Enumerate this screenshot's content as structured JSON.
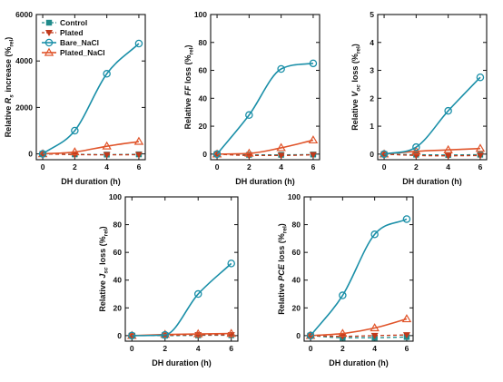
{
  "colors": {
    "control": "#1f8a8a",
    "plated": "#c0391b",
    "bare_nacl": "#1a8fa8",
    "plated_nacl": "#e0542a",
    "axis": "#111111"
  },
  "chart_data": [
    {
      "id": "rs",
      "type": "line",
      "xlabel": "DH duration (h)",
      "ylabel": {
        "pre": "Relative ",
        "main": "R",
        "mainSub": "s",
        "post": " increase (%",
        "sub": "rel",
        "close": ")"
      },
      "xlim": [
        -0.4,
        6.4
      ],
      "ylim": [
        -250,
        6000
      ],
      "xticks": [
        0,
        2,
        4,
        6
      ],
      "yticks": [
        0,
        2000,
        4000,
        6000
      ],
      "x": [
        0,
        2,
        4,
        6
      ],
      "series": [
        {
          "name": "Control",
          "values": [
            0,
            -20,
            -30,
            -20
          ]
        },
        {
          "name": "Plated",
          "values": [
            0,
            -30,
            -40,
            -35
          ]
        },
        {
          "name": "Bare_NaCl",
          "values": [
            0,
            1000,
            3450,
            4750
          ]
        },
        {
          "name": "Plated_NaCl",
          "values": [
            0,
            80,
            330,
            530
          ]
        }
      ],
      "legend": "top-left"
    },
    {
      "id": "ff",
      "type": "line",
      "xlabel": "DH duration (h)",
      "ylabel": {
        "pre": "Relative ",
        "main": "FF",
        "post": " loss (%",
        "sub": "rel",
        "close": ")"
      },
      "xlim": [
        -0.4,
        6.4
      ],
      "ylim": [
        -4,
        100
      ],
      "xticks": [
        0,
        2,
        4,
        6
      ],
      "yticks": [
        0,
        20,
        40,
        60,
        80,
        100
      ],
      "x": [
        0,
        2,
        4,
        6
      ],
      "series": [
        {
          "name": "Control",
          "values": [
            0,
            -0.5,
            -0.5,
            -0.3
          ]
        },
        {
          "name": "Plated",
          "values": [
            0,
            -1,
            -1,
            -0.5
          ]
        },
        {
          "name": "Bare_NaCl",
          "values": [
            0,
            28,
            61,
            65
          ]
        },
        {
          "name": "Plated_NaCl",
          "values": [
            0,
            0.5,
            4.5,
            10
          ]
        }
      ]
    },
    {
      "id": "voc",
      "type": "line",
      "xlabel": "DH duration (h)",
      "ylabel": {
        "pre": "Relative ",
        "main": "V",
        "mainSub": "oc",
        "post": " loss (%",
        "sub": "rel",
        "close": ")"
      },
      "xlim": [
        -0.4,
        6.4
      ],
      "ylim": [
        -0.2,
        5
      ],
      "xticks": [
        0,
        2,
        4,
        6
      ],
      "yticks": [
        0,
        1,
        2,
        3,
        4,
        5
      ],
      "x": [
        0,
        2,
        4,
        6
      ],
      "series": [
        {
          "name": "Control",
          "values": [
            0,
            -0.02,
            -0.03,
            -0.02
          ]
        },
        {
          "name": "Plated",
          "values": [
            0,
            -0.05,
            -0.06,
            -0.05
          ]
        },
        {
          "name": "Bare_NaCl",
          "values": [
            0,
            0.25,
            1.55,
            2.75
          ]
        },
        {
          "name": "Plated_NaCl",
          "values": [
            0,
            0.1,
            0.15,
            0.2
          ]
        }
      ]
    },
    {
      "id": "jsc",
      "type": "line",
      "xlabel": "DH duration (h)",
      "ylabel": {
        "pre": "Relative ",
        "main": "J",
        "mainSub": "sc",
        "post": " loss (%",
        "sub": "rel",
        "close": ")"
      },
      "xlim": [
        -0.4,
        6.4
      ],
      "ylim": [
        -4,
        100
      ],
      "xticks": [
        0,
        2,
        4,
        6
      ],
      "yticks": [
        0,
        20,
        40,
        60,
        80,
        100
      ],
      "x": [
        0,
        2,
        4,
        6
      ],
      "series": [
        {
          "name": "Control",
          "values": [
            0,
            0,
            0.2,
            0.3
          ]
        },
        {
          "name": "Plated",
          "values": [
            0,
            0.3,
            0.5,
            0.5
          ]
        },
        {
          "name": "Bare_NaCl",
          "values": [
            0,
            0.5,
            30,
            52
          ]
        },
        {
          "name": "Plated_NaCl",
          "values": [
            0,
            0.8,
            1.2,
            1.5
          ]
        }
      ]
    },
    {
      "id": "pce",
      "type": "line",
      "xlabel": "DH duration (h)",
      "ylabel": {
        "pre": "Relative ",
        "main": "PCE",
        "post": " loss (%",
        "sub": "rel",
        "close": ")"
      },
      "xlim": [
        -0.4,
        6.4
      ],
      "ylim": [
        -4,
        100
      ],
      "xticks": [
        0,
        2,
        4,
        6
      ],
      "yticks": [
        0,
        20,
        40,
        60,
        80,
        100
      ],
      "x": [
        0,
        2,
        4,
        6
      ],
      "series": [
        {
          "name": "Control",
          "values": [
            0,
            -1.5,
            -1.5,
            -1
          ]
        },
        {
          "name": "Plated",
          "values": [
            0,
            -0.5,
            0,
            0.5
          ]
        },
        {
          "name": "Bare_NaCl",
          "values": [
            0,
            29,
            73,
            84
          ]
        },
        {
          "name": "Plated_NaCl",
          "values": [
            0,
            1.5,
            5.5,
            12
          ]
        }
      ]
    }
  ]
}
